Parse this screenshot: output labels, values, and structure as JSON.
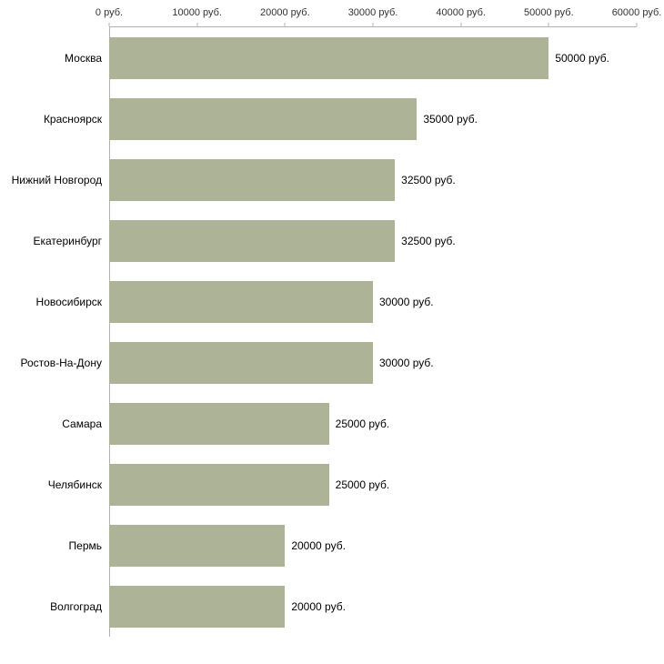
{
  "chart_data": {
    "type": "bar",
    "orientation": "horizontal",
    "title": "",
    "xlabel": "",
    "ylabel": "",
    "xlim": [
      0,
      60000
    ],
    "grid": false,
    "legend": false,
    "bar_color": "#acb397",
    "axis_color": "#b3b3b3",
    "tick_text_color": "#333333",
    "label_text_color": "#000000",
    "categories": [
      "Москва",
      "Красноярск",
      "Нижний Новгород",
      "Екатеринбург",
      "Новосибирск",
      "Ростов-На-Дону",
      "Самара",
      "Челябинск",
      "Пермь",
      "Волгоград"
    ],
    "values": [
      50000,
      35000,
      32500,
      32500,
      30000,
      30000,
      25000,
      25000,
      20000,
      20000
    ],
    "value_labels": [
      "50000 руб.",
      "35000 руб.",
      "32500 руб.",
      "32500 руб.",
      "30000 руб.",
      "30000 руб.",
      "25000 руб.",
      "25000 руб.",
      "20000 руб.",
      "20000 руб."
    ],
    "x_ticks": [
      {
        "value": 0,
        "label": "0 руб."
      },
      {
        "value": 10000,
        "label": "10000 руб."
      },
      {
        "value": 20000,
        "label": "20000 руб."
      },
      {
        "value": 30000,
        "label": "30000 руб."
      },
      {
        "value": 40000,
        "label": "40000 руб."
      },
      {
        "value": 50000,
        "label": "50000 руб."
      },
      {
        "value": 60000,
        "label": "60000 руб."
      }
    ]
  }
}
